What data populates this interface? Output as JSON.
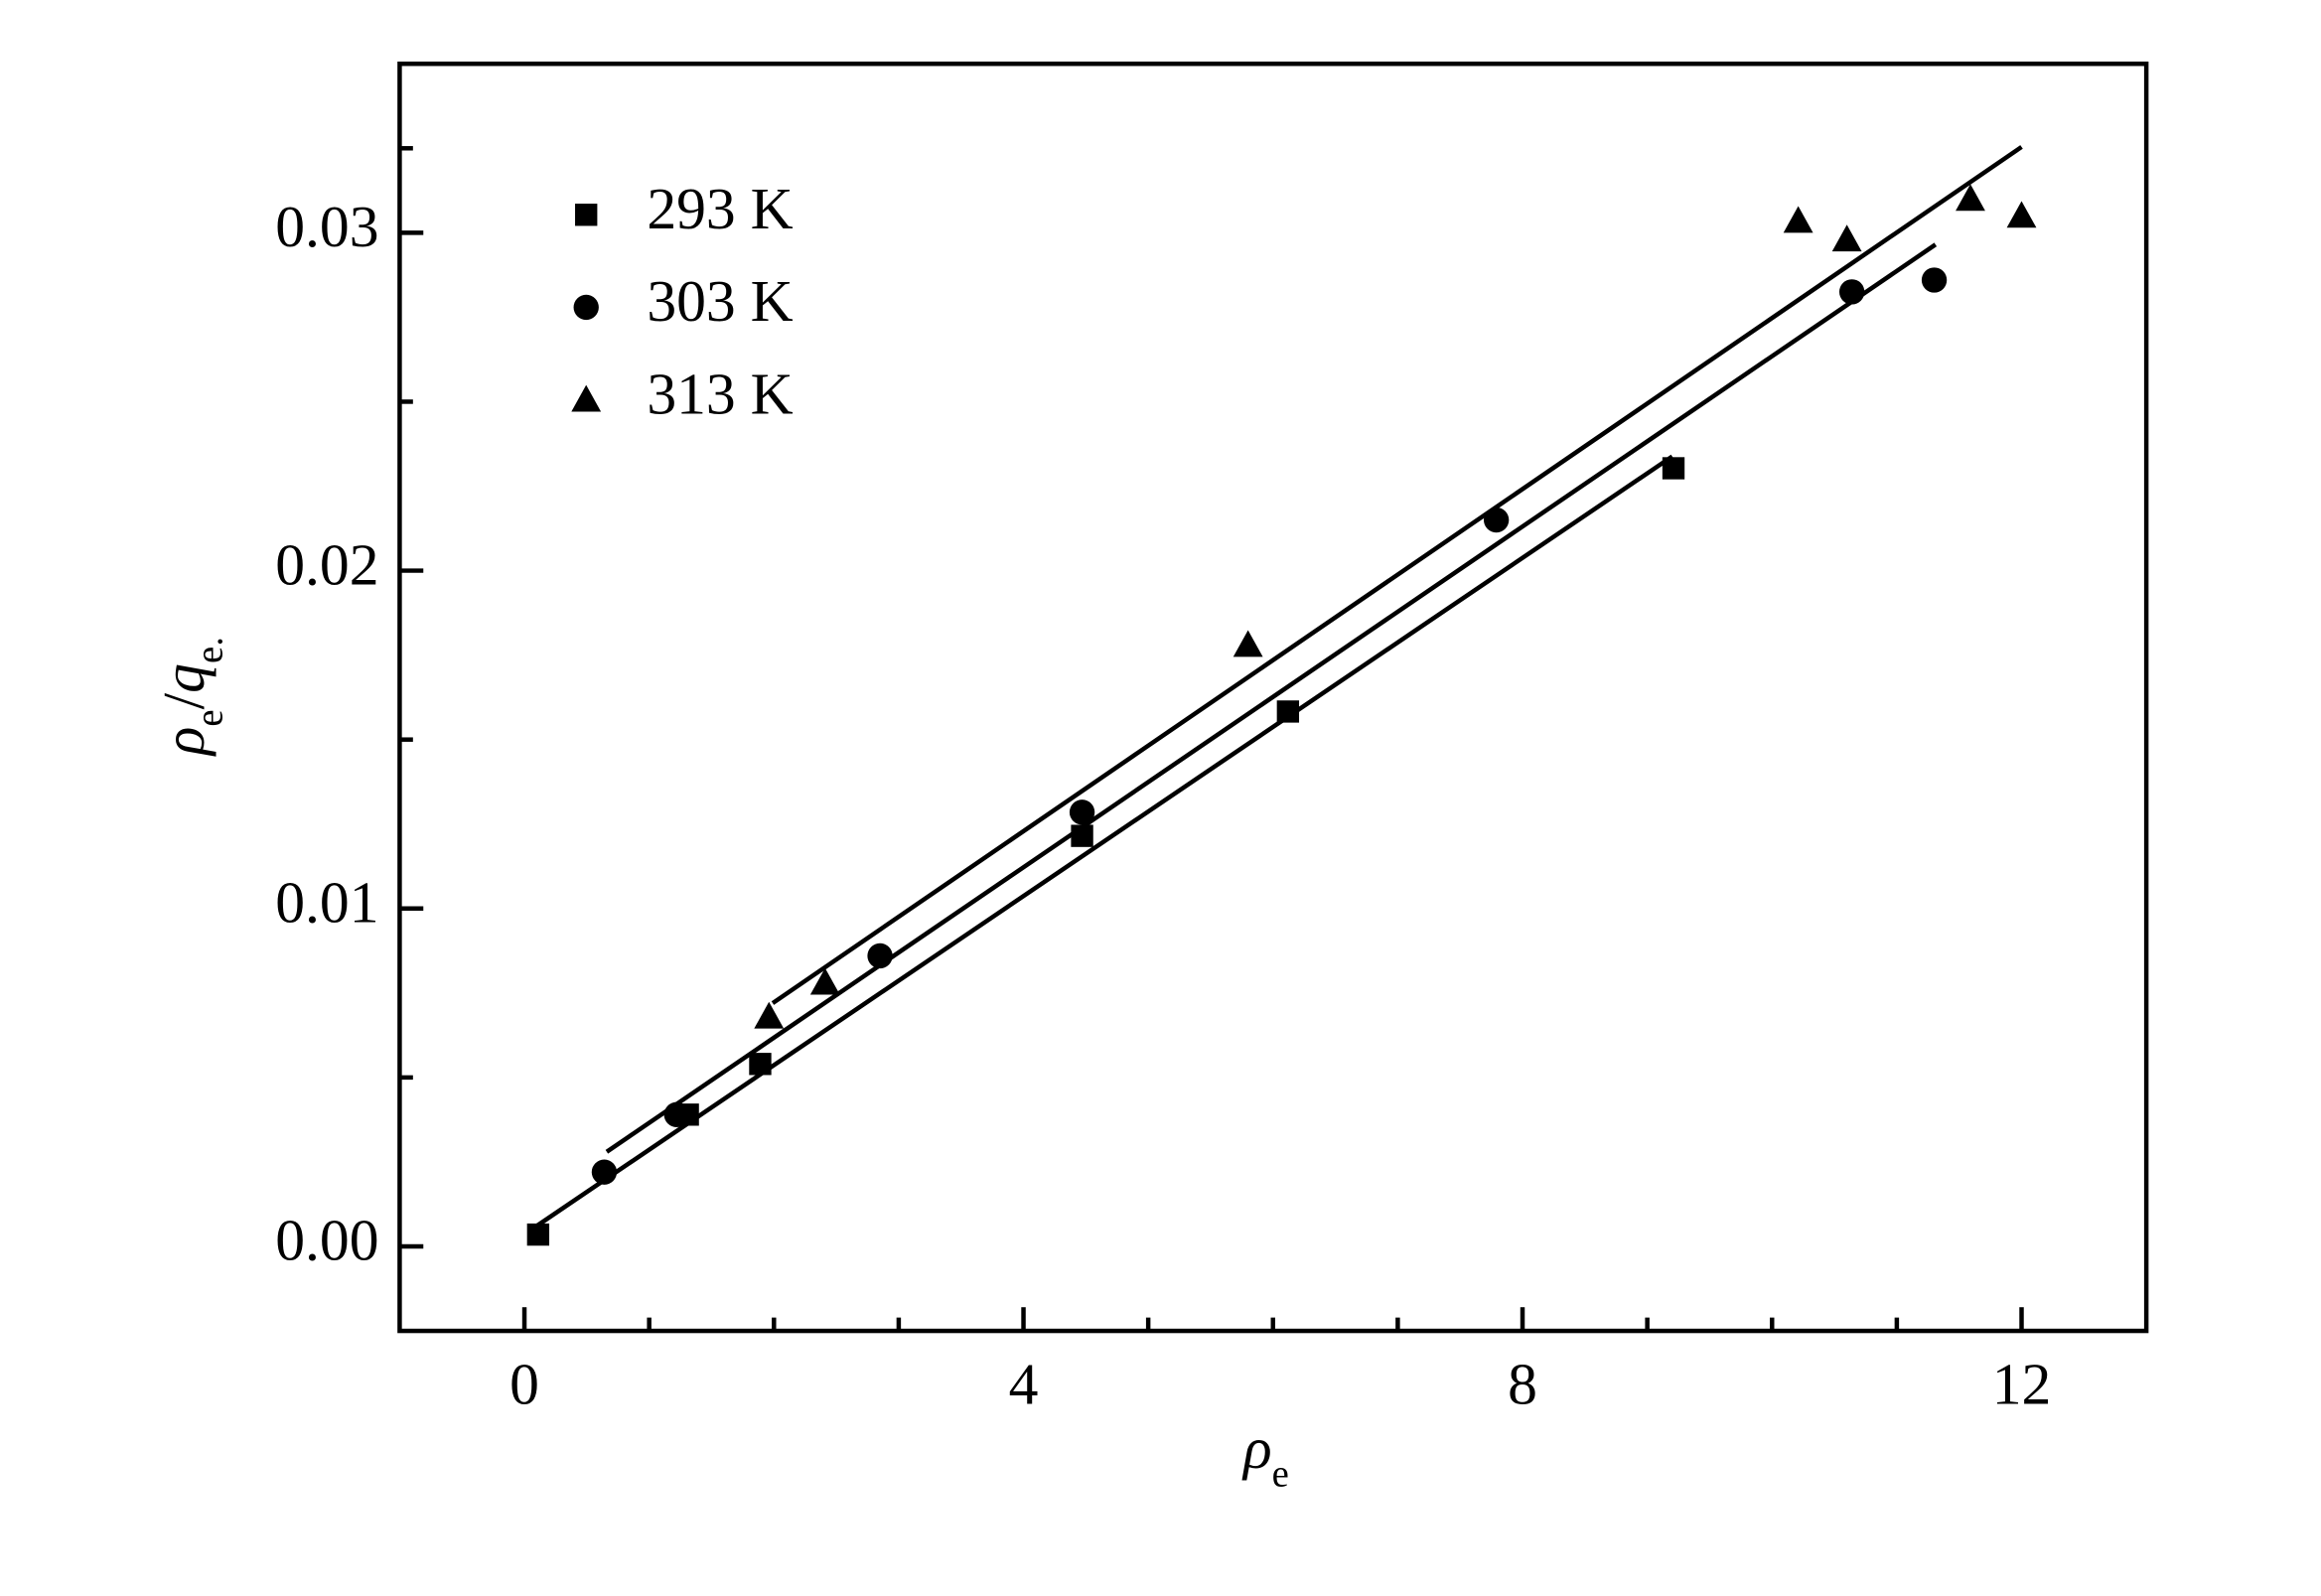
{
  "chart_data": {
    "type": "scatter",
    "xlim": [
      -1,
      13
    ],
    "ylim": [
      -0.0025,
      0.035
    ],
    "xticks": [
      0,
      4,
      8,
      12
    ],
    "xticks_minor": [
      1,
      2,
      3,
      5,
      6,
      7,
      9,
      10,
      11
    ],
    "yticks": [
      {
        "value": 0,
        "label": "0.00"
      },
      0.01,
      0.02,
      0.03
    ],
    "yticks_minor": [
      0.005,
      0.015,
      0.025,
      0.0325
    ],
    "xlabel": {
      "symbol": "ρ",
      "subscript": "e"
    },
    "ylabel": {
      "symbol": "ρ",
      "subscript": "e",
      "separator": "/",
      "symbol2": "q",
      "subscript2": "e."
    },
    "legend": "top-left",
    "series": [
      {
        "name": "293 K",
        "marker": "square",
        "color": "#000000",
        "x": [
          0.11,
          1.31,
          1.89,
          4.47,
          6.12,
          9.21
        ],
        "values": [
          0.00035,
          0.0039,
          0.0054,
          0.01215,
          0.01583,
          0.02303
        ],
        "fit": {
          "x": [
            0.1,
            9.2
          ],
          "y": [
            0.00061,
            0.02338
          ]
        }
      },
      {
        "name": "303 K",
        "marker": "circle",
        "color": "#000000",
        "x": [
          0.64,
          1.22,
          2.85,
          4.47,
          7.79,
          10.64,
          11.3
        ],
        "values": [
          0.0022,
          0.0039,
          0.0086,
          0.01285,
          0.0215,
          0.02825,
          0.0286
        ],
        "fit": {
          "x": [
            0.66,
            11.31
          ],
          "y": [
            0.0028,
            0.02965
          ]
        }
      },
      {
        "name": "313 K",
        "marker": "triangle",
        "color": "#000000",
        "x": [
          1.96,
          2.41,
          5.8,
          10.21,
          10.6,
          11.59,
          12.0
        ],
        "values": [
          0.0068,
          0.0078,
          0.0178,
          0.03035,
          0.0298,
          0.031,
          0.0305
        ],
        "fit": {
          "x": [
            1.99,
            12.0
          ],
          "y": [
            0.0072,
            0.03254
          ]
        }
      }
    ]
  }
}
